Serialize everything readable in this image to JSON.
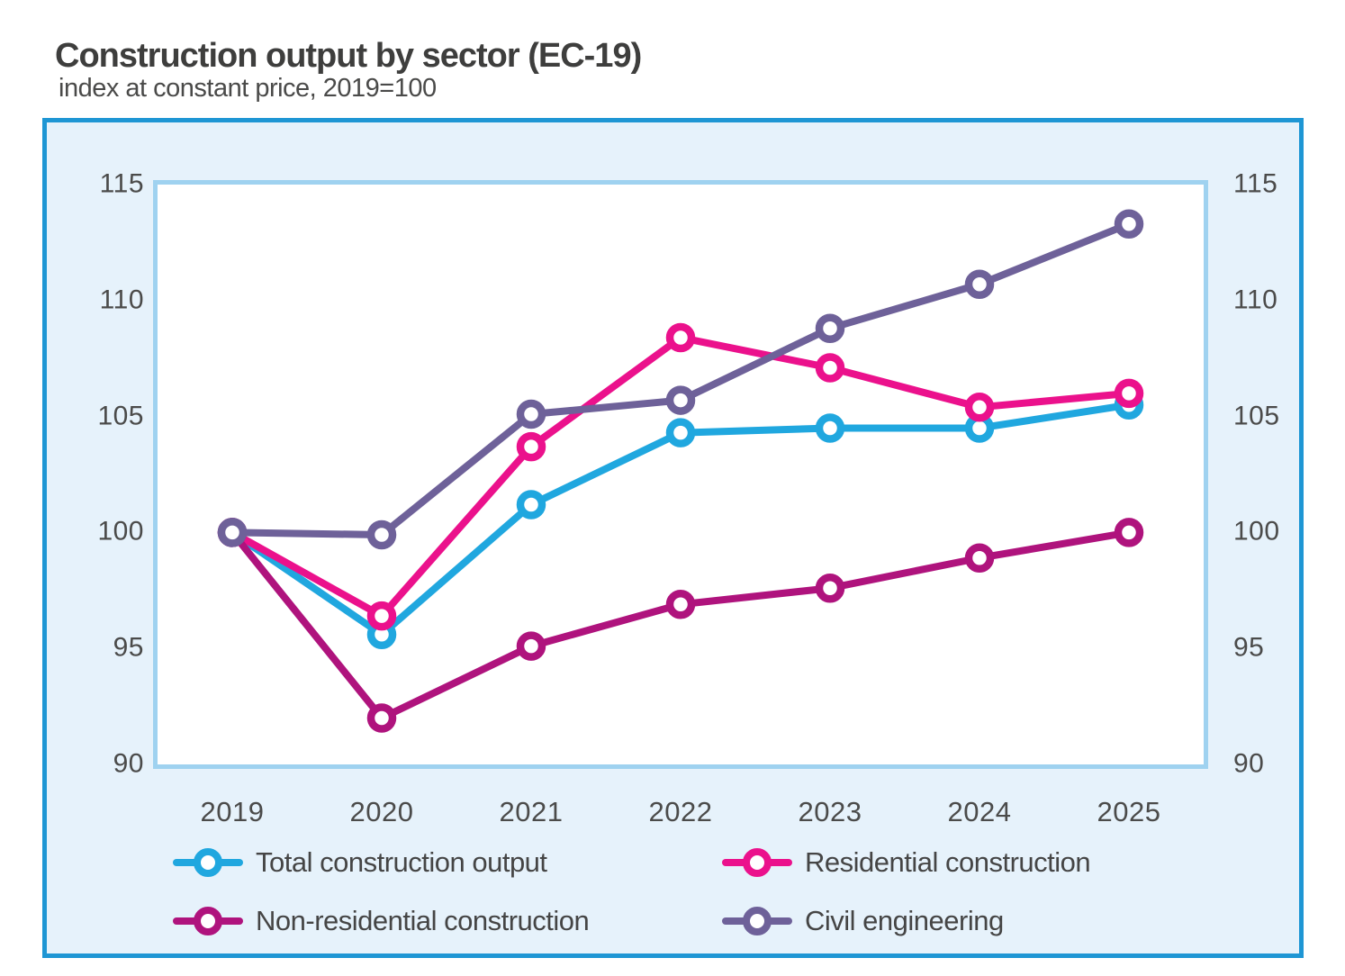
{
  "title": "Construction output by sector (EC-19)",
  "subtitle": "index at constant price, 2019=100",
  "colors": {
    "frame_border": "#1E96D4",
    "frame_background": "#E6F2FB",
    "plot_border": "#9FD2F0",
    "plot_background": "#FFFFFF",
    "text_dark": "#3E3E3D",
    "text_axis": "#4B4B4A"
  },
  "chart_data": {
    "type": "line",
    "categories": [
      "2019",
      "2020",
      "2021",
      "2022",
      "2023",
      "2024",
      "2025"
    ],
    "series": [
      {
        "id": "total",
        "name": "Total construction output",
        "color": "#20A7DF",
        "values": [
          100,
          95.6,
          101.2,
          104.3,
          104.5,
          104.5,
          105.5
        ]
      },
      {
        "id": "residential",
        "name": "Residential construction",
        "color": "#EB118C",
        "values": [
          100,
          96.4,
          103.7,
          108.4,
          107.1,
          105.4,
          106.0
        ]
      },
      {
        "id": "non-residential",
        "name": "Non-residential construction",
        "color": "#AF137D",
        "values": [
          100,
          92.0,
          95.1,
          96.9,
          97.6,
          98.9,
          100.0
        ]
      },
      {
        "id": "civil",
        "name": "Civil engineering",
        "color": "#6E6199",
        "values": [
          100,
          99.9,
          105.1,
          105.7,
          108.8,
          110.7,
          113.3
        ]
      }
    ],
    "ylim": [
      90,
      115
    ],
    "yticks": [
      115,
      110,
      105,
      100,
      95,
      90
    ],
    "y_axis_sides": [
      "left",
      "right"
    ],
    "grid": false,
    "legend_position": "bottom",
    "marker": "open-circle"
  }
}
